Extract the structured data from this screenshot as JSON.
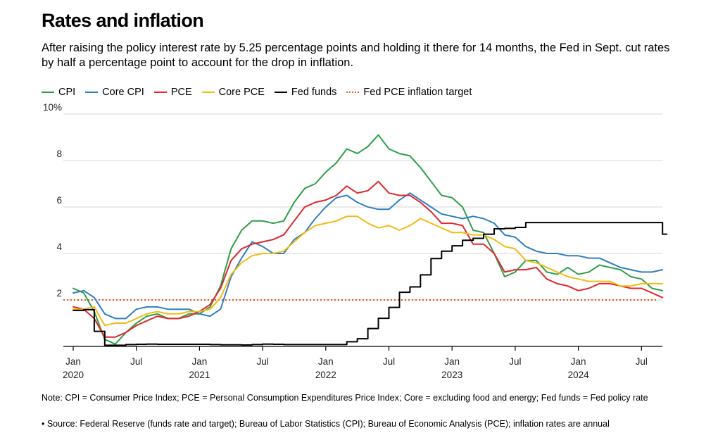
{
  "title": "Rates and inflation",
  "subtitle": "After raising the policy interest rate by 5.25 percentage points and holding it there for 14 months, the Fed in Sept. cut rates by half a percentage point to account for the drop in inflation.",
  "note": "Note: CPI = Consumer Price Index; PCE = Personal Consumption Expenditures Price Index; Core = excluding food and energy; Fed funds = Fed policy rate",
  "source": "• Source: Federal Reserve (funds rate and target); Bureau of Labor Statistics (CPI); Bureau of Economic Analysis (PCE); inflation rates are annual",
  "legend": [
    {
      "label": "CPI",
      "color": "#2e9e47",
      "style": "solid"
    },
    {
      "label": "Core CPI",
      "color": "#2f7fc1",
      "style": "solid"
    },
    {
      "label": "PCE",
      "color": "#e0282c",
      "style": "solid"
    },
    {
      "label": "Core PCE",
      "color": "#f2bb13",
      "style": "solid"
    },
    {
      "label": "Fed funds",
      "color": "#000000",
      "style": "solid"
    },
    {
      "label": "Fed PCE inflation target",
      "color": "#e5571f",
      "style": "dotted"
    }
  ],
  "chart_data": {
    "type": "line",
    "title": "Rates and inflation",
    "xlabel": "",
    "ylabel": "",
    "ylim": [
      0,
      10
    ],
    "grid": true,
    "legend_position": "top",
    "y_ticks": [
      {
        "value": 2,
        "label": "2"
      },
      {
        "value": 4,
        "label": "4"
      },
      {
        "value": 6,
        "label": "6"
      },
      {
        "value": 8,
        "label": "8"
      },
      {
        "value": 10,
        "label": "10%"
      }
    ],
    "x_ticks": [
      {
        "index": 0,
        "line1": "Jan",
        "line2": "2020"
      },
      {
        "index": 6,
        "line1": "Jul",
        "line2": ""
      },
      {
        "index": 12,
        "line1": "Jan",
        "line2": "2021"
      },
      {
        "index": 18,
        "line1": "Jul",
        "line2": ""
      },
      {
        "index": 24,
        "line1": "Jan",
        "line2": "2022"
      },
      {
        "index": 30,
        "line1": "Jul",
        "line2": ""
      },
      {
        "index": 36,
        "line1": "Jan",
        "line2": "2023"
      },
      {
        "index": 42,
        "line1": "Jul",
        "line2": ""
      },
      {
        "index": 48,
        "line1": "Jan",
        "line2": "2024"
      },
      {
        "index": 54,
        "line1": "Jul",
        "line2": ""
      }
    ],
    "x_start": "Jan 2020",
    "x_end": "Sep 2024",
    "target": {
      "name": "Fed PCE inflation target",
      "value": 2,
      "color": "#e5571f"
    },
    "series": [
      {
        "name": "CPI",
        "color": "#2e9e47",
        "values": [
          2.5,
          2.3,
          1.5,
          0.3,
          0.1,
          0.6,
          1.0,
          1.3,
          1.4,
          1.2,
          1.2,
          1.4,
          1.4,
          1.7,
          2.6,
          4.2,
          5.0,
          5.4,
          5.4,
          5.3,
          5.4,
          6.2,
          6.8,
          7.0,
          7.5,
          7.9,
          8.5,
          8.3,
          8.6,
          9.1,
          8.5,
          8.3,
          8.2,
          7.7,
          7.1,
          6.5,
          6.4,
          6.0,
          5.0,
          4.9,
          4.0,
          3.0,
          3.2,
          3.7,
          3.7,
          3.2,
          3.1,
          3.4,
          3.1,
          3.2,
          3.5,
          3.4,
          3.3,
          3.0,
          2.9,
          2.5,
          2.4
        ]
      },
      {
        "name": "Core CPI",
        "color": "#2f7fc1",
        "values": [
          2.3,
          2.4,
          2.1,
          1.4,
          1.2,
          1.2,
          1.6,
          1.7,
          1.7,
          1.6,
          1.6,
          1.6,
          1.4,
          1.3,
          1.6,
          3.0,
          3.8,
          4.5,
          4.3,
          4.0,
          4.0,
          4.6,
          4.9,
          5.5,
          6.0,
          6.4,
          6.5,
          6.2,
          6.0,
          5.9,
          5.9,
          6.3,
          6.6,
          6.3,
          6.0,
          5.7,
          5.6,
          5.5,
          5.6,
          5.5,
          5.3,
          4.8,
          4.7,
          4.3,
          4.1,
          4.0,
          4.0,
          3.9,
          3.9,
          3.8,
          3.8,
          3.6,
          3.4,
          3.3,
          3.2,
          3.2,
          3.3
        ]
      },
      {
        "name": "PCE",
        "color": "#e0282c",
        "values": [
          1.7,
          1.6,
          1.2,
          0.4,
          0.4,
          0.6,
          0.9,
          1.1,
          1.3,
          1.2,
          1.2,
          1.3,
          1.5,
          1.8,
          2.5,
          3.7,
          4.2,
          4.4,
          4.5,
          4.6,
          4.8,
          5.4,
          6.0,
          6.2,
          6.3,
          6.5,
          6.9,
          6.6,
          6.7,
          7.1,
          6.6,
          6.5,
          6.5,
          6.2,
          5.8,
          5.3,
          5.3,
          5.2,
          4.4,
          4.4,
          4.0,
          3.2,
          3.3,
          3.3,
          3.4,
          2.9,
          2.7,
          2.6,
          2.4,
          2.5,
          2.7,
          2.7,
          2.6,
          2.5,
          2.5,
          2.3,
          2.1
        ]
      },
      {
        "name": "Core PCE",
        "color": "#f2bb13",
        "values": [
          1.6,
          1.6,
          1.7,
          0.9,
          1.0,
          1.0,
          1.2,
          1.4,
          1.5,
          1.4,
          1.4,
          1.5,
          1.5,
          1.6,
          2.1,
          3.1,
          3.6,
          3.9,
          4.0,
          4.0,
          4.1,
          4.5,
          4.9,
          5.2,
          5.3,
          5.4,
          5.6,
          5.6,
          5.3,
          5.1,
          5.2,
          5.0,
          5.2,
          5.5,
          5.3,
          5.1,
          4.9,
          4.9,
          4.8,
          4.8,
          4.6,
          4.3,
          4.2,
          3.7,
          3.6,
          3.4,
          3.2,
          3.0,
          2.9,
          2.8,
          2.8,
          2.8,
          2.6,
          2.6,
          2.7,
          2.7,
          2.7
        ]
      },
      {
        "name": "Fed funds",
        "color": "#000000",
        "step": true,
        "values": [
          1.55,
          1.58,
          0.65,
          0.05,
          0.05,
          0.08,
          0.09,
          0.1,
          0.09,
          0.09,
          0.09,
          0.09,
          0.09,
          0.08,
          0.07,
          0.07,
          0.06,
          0.08,
          0.1,
          0.09,
          0.08,
          0.08,
          0.08,
          0.08,
          0.08,
          0.08,
          0.2,
          0.33,
          0.77,
          1.21,
          1.68,
          2.33,
          2.56,
          3.08,
          3.78,
          4.1,
          4.33,
          4.57,
          4.65,
          4.83,
          5.06,
          5.08,
          5.12,
          5.33,
          5.33,
          5.33,
          5.33,
          5.33,
          5.33,
          5.33,
          5.33,
          5.33,
          5.33,
          5.33,
          5.33,
          5.33,
          4.83
        ]
      }
    ]
  }
}
